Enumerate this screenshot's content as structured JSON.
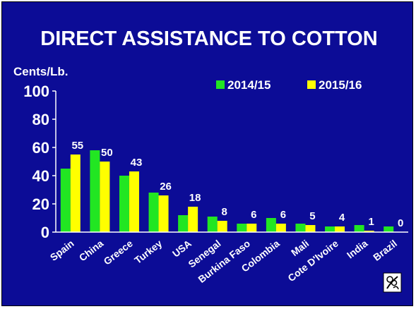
{
  "chart_data": {
    "type": "bar",
    "title": "DIRECT ASSISTANCE TO COTTON",
    "ylabel": "Cents/Lb.",
    "ylim": [
      0,
      100
    ],
    "yticks": [
      0,
      20,
      40,
      60,
      80,
      100
    ],
    "grid": false,
    "legend_position": "top-right",
    "categories": [
      "Spain",
      "China",
      "Greece",
      "Turkey",
      "USA",
      "Senegal",
      "Burkina Faso",
      "Colombia",
      "Mali",
      "Cote D'Ivoire",
      "India",
      "Brazil"
    ],
    "series": [
      {
        "name": "2014/15",
        "color": "#22e622",
        "values": [
          45,
          58,
          40,
          28,
          12,
          11,
          6,
          10,
          6,
          4,
          5,
          4
        ]
      },
      {
        "name": "2015/16",
        "color": "#ffff00",
        "values": [
          55,
          50,
          43,
          26,
          18,
          8,
          6,
          6,
          5,
          4,
          1,
          0
        ]
      }
    ],
    "data_labels": [
      "55",
      "50",
      "43",
      "26",
      "18",
      "8",
      "6",
      "6",
      "5",
      "4",
      "1",
      "0"
    ]
  },
  "colors": {
    "background": "#0c0c96",
    "text": "#ffffff",
    "axis": "#ffffff"
  },
  "logo": {
    "icon": "cotton-boll-icon"
  }
}
